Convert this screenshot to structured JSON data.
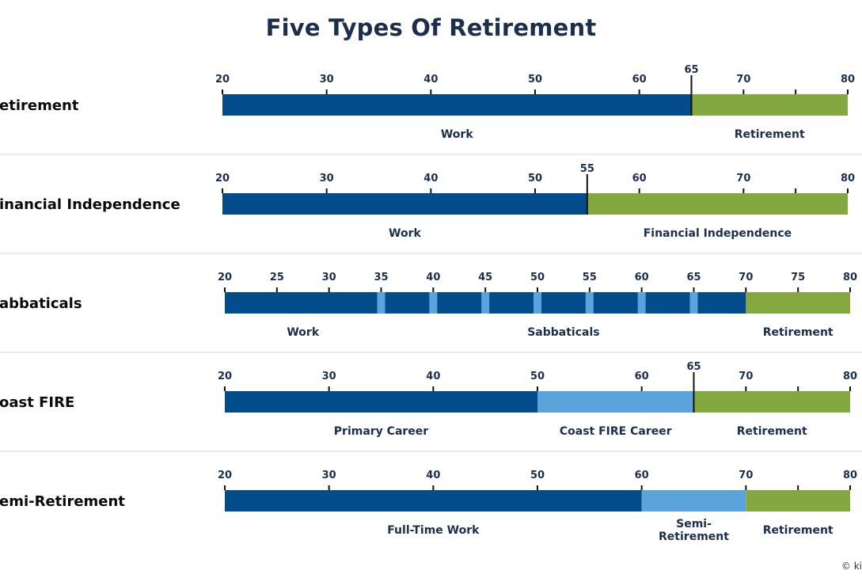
{
  "title": "Five Types Of Retirement",
  "credit": "© ki",
  "colors": {
    "work": "#034c8c",
    "light": "#5aa3db",
    "green": "#84a840",
    "text": "#1b2f4d",
    "divider": "#d7d7d7"
  },
  "chart_data": {
    "type": "bar",
    "xlim": [
      20,
      80
    ],
    "rows": [
      {
        "label": "etirement",
        "ticks": [
          "20",
          "30",
          "40",
          "50",
          "60",
          "65",
          "70",
          "80"
        ],
        "tick_values": [
          20,
          30,
          40,
          50,
          60,
          65,
          70,
          80
        ],
        "highlight_tick": "65",
        "minor_ticks": [
          75
        ],
        "segments": [
          {
            "label": "Work",
            "start": 20,
            "end": 65,
            "color": "work"
          },
          {
            "label": "Retirement",
            "start": 65,
            "end": 80,
            "color": "green"
          }
        ],
        "markers": []
      },
      {
        "label": "inancial Independence",
        "ticks": [
          "20",
          "30",
          "40",
          "50",
          "55",
          "60",
          "70",
          "80"
        ],
        "tick_values": [
          20,
          30,
          40,
          50,
          55,
          60,
          70,
          80
        ],
        "highlight_tick": "55",
        "minor_ticks": [
          75
        ],
        "segments": [
          {
            "label": "Work",
            "start": 20,
            "end": 55,
            "color": "work"
          },
          {
            "label": "Financial Independence",
            "start": 55,
            "end": 80,
            "color": "green"
          }
        ],
        "markers": []
      },
      {
        "label": "abbaticals",
        "ticks": [
          "20",
          "25",
          "30",
          "35",
          "40",
          "45",
          "50",
          "55",
          "60",
          "65",
          "70",
          "75",
          "80"
        ],
        "tick_values": [
          20,
          25,
          30,
          35,
          40,
          45,
          50,
          55,
          60,
          65,
          70,
          75,
          80
        ],
        "highlight_tick": "",
        "minor_ticks": [],
        "segments": [
          {
            "label": "Work",
            "start": 20,
            "end": 35,
            "color": "work"
          },
          {
            "label": "Sabbaticals",
            "start": 35,
            "end": 70,
            "color": "work"
          },
          {
            "label": "Retirement",
            "start": 70,
            "end": 80,
            "color": "green"
          }
        ],
        "markers": [
          35,
          40,
          45,
          50,
          55,
          60,
          65
        ]
      },
      {
        "label": "oast FIRE",
        "ticks": [
          "20",
          "30",
          "40",
          "50",
          "60",
          "65",
          "70",
          "80"
        ],
        "tick_values": [
          20,
          30,
          40,
          50,
          60,
          65,
          70,
          80
        ],
        "highlight_tick": "65",
        "minor_ticks": [
          75
        ],
        "segments": [
          {
            "label": "Primary Career",
            "start": 20,
            "end": 50,
            "color": "work"
          },
          {
            "label": "Coast FIRE Career",
            "start": 50,
            "end": 65,
            "color": "light"
          },
          {
            "label": "Retirement",
            "start": 65,
            "end": 80,
            "color": "green"
          }
        ],
        "markers": []
      },
      {
        "label": "emi-Retirement",
        "ticks": [
          "20",
          "30",
          "40",
          "50",
          "60",
          "70",
          "80"
        ],
        "tick_values": [
          20,
          30,
          40,
          50,
          60,
          70,
          80
        ],
        "highlight_tick": "",
        "minor_ticks": [
          75
        ],
        "segments": [
          {
            "label": "Full-Time Work",
            "start": 20,
            "end": 60,
            "color": "work"
          },
          {
            "label": "Semi-\nRetirement",
            "start": 60,
            "end": 70,
            "color": "light"
          },
          {
            "label": "Retirement",
            "start": 70,
            "end": 80,
            "color": "green"
          }
        ],
        "markers": []
      }
    ]
  }
}
